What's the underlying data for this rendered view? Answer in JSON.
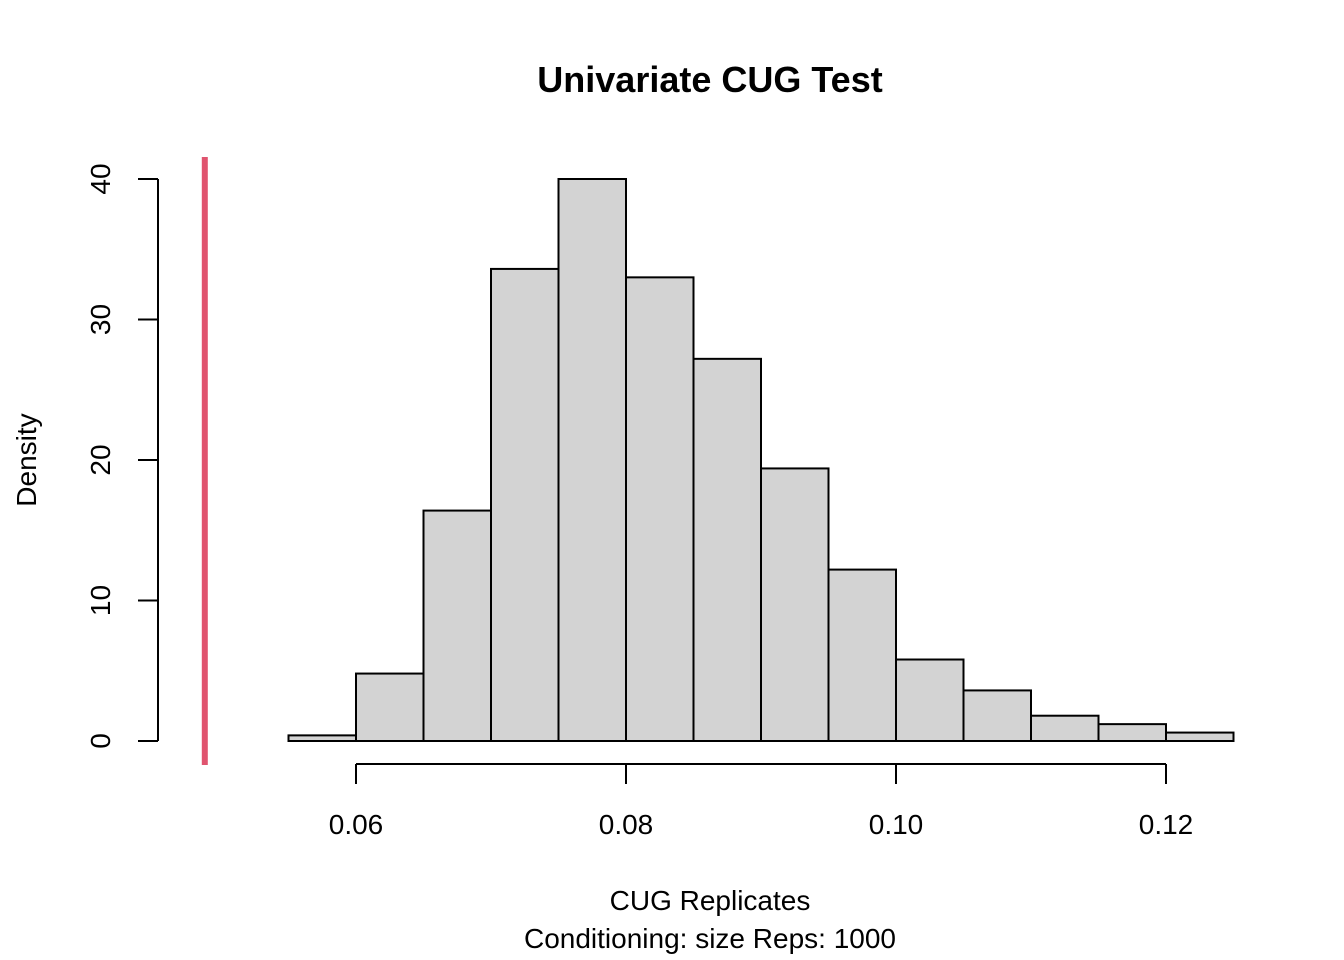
{
  "chart_data": {
    "type": "bar",
    "title": "Univariate CUG Test",
    "xlabel": "CUG Replicates",
    "subtitle": "Conditioning: size Reps: 1000",
    "ylabel": "Density",
    "xlim": [
      0.055,
      0.125
    ],
    "ylim": [
      0,
      40
    ],
    "xticks": [
      0.06,
      0.08,
      0.1,
      0.12
    ],
    "xtick_labels": [
      "0.06",
      "0.08",
      "0.10",
      "0.12"
    ],
    "yticks": [
      0,
      10,
      20,
      30,
      40
    ],
    "ytick_labels": [
      "0",
      "10",
      "20",
      "30",
      "40"
    ],
    "bins": [
      {
        "x0": 0.055,
        "x1": 0.06,
        "density": 0.4
      },
      {
        "x0": 0.06,
        "x1": 0.065,
        "density": 4.8
      },
      {
        "x0": 0.065,
        "x1": 0.07,
        "density": 16.4
      },
      {
        "x0": 0.07,
        "x1": 0.075,
        "density": 33.6
      },
      {
        "x0": 0.075,
        "x1": 0.08,
        "density": 40.0
      },
      {
        "x0": 0.08,
        "x1": 0.085,
        "density": 33.0
      },
      {
        "x0": 0.085,
        "x1": 0.09,
        "density": 27.2
      },
      {
        "x0": 0.09,
        "x1": 0.095,
        "density": 19.4
      },
      {
        "x0": 0.095,
        "x1": 0.1,
        "density": 12.2
      },
      {
        "x0": 0.1,
        "x1": 0.105,
        "density": 5.8
      },
      {
        "x0": 0.105,
        "x1": 0.11,
        "density": 3.6
      },
      {
        "x0": 0.11,
        "x1": 0.115,
        "density": 1.8
      },
      {
        "x0": 0.115,
        "x1": 0.12,
        "density": 1.2
      },
      {
        "x0": 0.12,
        "x1": 0.125,
        "density": 0.6
      }
    ],
    "observed_value": 0.0488,
    "observed_line_color": "#e0546f",
    "bar_color": "#d3d3d3",
    "grid": false,
    "legend": "none"
  }
}
